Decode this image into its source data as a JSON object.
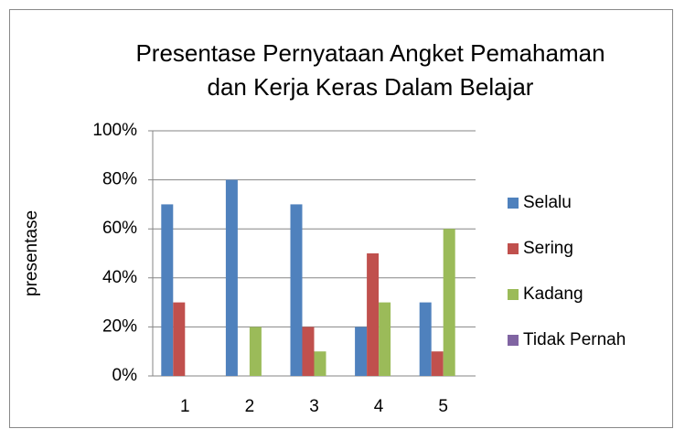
{
  "chart_data": {
    "type": "bar",
    "title": [
      "Presentase Pernyataan Angket Pemahaman",
      "dan Kerja Keras Dalam Belajar"
    ],
    "ylabel": "presentase",
    "categories": [
      "1",
      "2",
      "3",
      "4",
      "5"
    ],
    "series": [
      {
        "name": "Selalu",
        "color": "#4f81bd",
        "values": [
          70,
          80,
          70,
          20,
          30
        ]
      },
      {
        "name": "Sering",
        "color": "#c0504d",
        "values": [
          30,
          0,
          20,
          50,
          10
        ]
      },
      {
        "name": "Kadang",
        "color": "#9bbb59",
        "values": [
          0,
          20,
          10,
          30,
          60
        ]
      },
      {
        "name": "Tidak Pernah",
        "color": "#8064a2",
        "values": [
          0,
          0,
          0,
          0,
          0
        ]
      }
    ],
    "ylim": [
      0,
      100
    ],
    "yticks": [
      {
        "value": 0,
        "label": "0%"
      },
      {
        "value": 20,
        "label": "20%"
      },
      {
        "value": 40,
        "label": "40%"
      },
      {
        "value": 60,
        "label": "60%"
      },
      {
        "value": 80,
        "label": "80%"
      },
      {
        "value": 100,
        "label": "100%"
      }
    ],
    "grid": true,
    "legend": "right"
  }
}
